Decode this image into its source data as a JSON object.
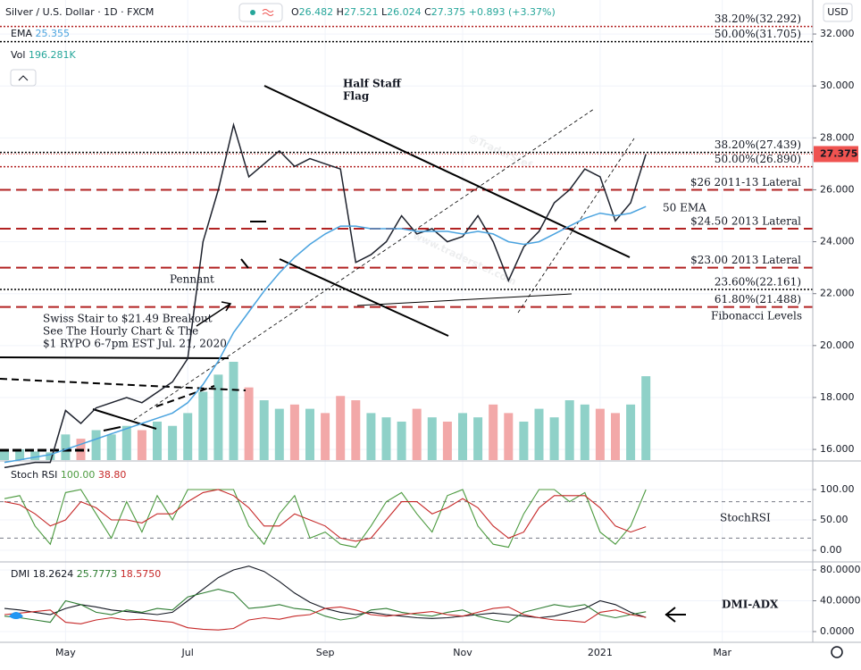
{
  "chart_data": [
    {
      "type": "line",
      "title": "Silver / U.S. Dollar · 1D · FXCM",
      "currency": "USD",
      "ohlc": [
        {
          "label": "O",
          "value": 26.482
        },
        {
          "label": "H",
          "value": 27.521
        },
        {
          "label": "L",
          "value": 26.024
        },
        {
          "label": "C",
          "value": 27.375
        }
      ],
      "change": {
        "value": 0.893,
        "label": "+0.893"
      },
      "change_pct": {
        "value": 3.37,
        "label": "(+3.37%)"
      },
      "last_price": 27.375,
      "indicators": [
        {
          "name": "EMA",
          "value": 25.355
        },
        {
          "name": "Vol",
          "value": 196.281,
          "label": "196.281K"
        }
      ],
      "series": [
        {
          "color": "#1e222d",
          "values": [
            15.3,
            15.4,
            15.5,
            15.5,
            17.5,
            17.0,
            17.6,
            17.8,
            18.0,
            17.8,
            18.2,
            18.6,
            19.5,
            24.0,
            26.0,
            28.5,
            26.5,
            27.0,
            27.5,
            26.9,
            27.2,
            27.0,
            26.8,
            23.2,
            23.5,
            24.0,
            25.0,
            24.3,
            24.5,
            24.0,
            24.2,
            25.0,
            24.0,
            22.5,
            23.8,
            24.4,
            25.5,
            26.0,
            26.8,
            26.5,
            24.8,
            25.5,
            27.375,
            null,
            null,
            null,
            null,
            null,
            null,
            null,
            null,
            null,
            null
          ]
        },
        {
          "color": "#4aa3df",
          "values": [
            15.5,
            15.6,
            15.7,
            15.8,
            16.0,
            16.2,
            16.4,
            16.6,
            16.8,
            17.0,
            17.2,
            17.4,
            17.8,
            18.5,
            19.4,
            20.5,
            21.3,
            22.1,
            22.8,
            23.4,
            23.9,
            24.3,
            24.6,
            24.6,
            24.5,
            24.5,
            24.5,
            24.4,
            24.4,
            24.4,
            24.3,
            24.4,
            24.3,
            24.0,
            23.9,
            24.0,
            24.3,
            24.6,
            24.9,
            25.1,
            25.0,
            25.1,
            25.355,
            null,
            null,
            null,
            null,
            null,
            null,
            null,
            null,
            null,
            null
          ]
        }
      ],
      "volume": {
        "up_color": "#8fd1c8",
        "down_color": "#f2a8a8",
        "values": [
          20,
          25,
          20,
          18,
          60,
          50,
          70,
          60,
          80,
          70,
          90,
          80,
          110,
          160,
          200,
          230,
          170,
          140,
          120,
          130,
          120,
          110,
          150,
          140,
          110,
          100,
          90,
          120,
          100,
          90,
          110,
          100,
          130,
          110,
          90,
          120,
          100,
          140,
          130,
          120,
          110,
          130,
          196.281,
          null,
          null,
          null,
          null,
          null,
          null,
          null,
          null,
          null,
          null
        ]
      },
      "levels": [
        {
          "value": 32.292,
          "label": "38.20%(32.292)",
          "color": "#b22222",
          "style": "dotted"
        },
        {
          "value": 31.705,
          "label": "50.00%(31.705)",
          "color": "#000000",
          "style": "dotted"
        },
        {
          "value": 27.439,
          "label": "38.20%(27.439)",
          "color": "#000000",
          "style": "dotted"
        },
        {
          "value": 26.89,
          "label": "50.00%(26.890)",
          "color": "#b22222",
          "style": "dotted"
        },
        {
          "value": 26,
          "label": "$26 2011-13 Lateral",
          "color": "#b22222",
          "style": "dashed"
        },
        {
          "value": 24.5,
          "label": "$24.50 2013 Lateral",
          "color": "#b22222",
          "style": "dashed"
        },
        {
          "value": 23,
          "label": "$23.00 2013 Lateral",
          "color": "#b22222",
          "style": "dashed"
        },
        {
          "value": 22.161,
          "label": "23.60%(22.161)",
          "color": "#000000",
          "style": "dotted"
        },
        {
          "value": 21.488,
          "label": "61.80%(21.488)",
          "color": "#b22222",
          "style": "dashed"
        }
      ],
      "annotations": [
        {
          "lines": [
            "Half Staff",
            "Flag"
          ]
        },
        {
          "lines": [
            "Pennant"
          ]
        },
        {
          "lines": [
            "Swiss Stair to $21.49 Breakout",
            "See The Hourly Chart & The",
            "$1 RYPO 6-7pm EST Jul. 21, 2020"
          ]
        },
        {
          "lines": [
            "50 EMA"
          ]
        },
        {
          "lines": [
            "Fibonacci Levels"
          ]
        }
      ],
      "watermark": [
        "@TraderStef",
        "www.traderstef.com"
      ],
      "ylim": [
        15.59,
        33.31
      ],
      "yticks": [
        {
          "value": 16,
          "label": "16.000"
        },
        {
          "value": 18,
          "label": "18.000"
        },
        {
          "value": 20,
          "label": "20.000"
        },
        {
          "value": 22,
          "label": "22.000"
        },
        {
          "value": 24,
          "label": "24.000"
        },
        {
          "value": 26,
          "label": "26.000"
        },
        {
          "value": 28,
          "label": "28.000"
        },
        {
          "value": 30,
          "label": "30.000"
        },
        {
          "value": 32,
          "label": "32.000"
        }
      ]
    },
    {
      "type": "line",
      "title": "Stoch RSI",
      "label": "StochRSI",
      "readings": [
        {
          "value": 100,
          "label": "100.00",
          "color": "#4c9a3f"
        },
        {
          "value": 38.8,
          "label": "38.80",
          "color": "#c62828"
        }
      ],
      "series": [
        {
          "color": "#4c9a3f",
          "values": [
            85,
            90,
            40,
            10,
            95,
            100,
            60,
            20,
            80,
            30,
            90,
            50,
            100,
            100,
            100,
            100,
            40,
            10,
            60,
            90,
            20,
            30,
            10,
            5,
            40,
            80,
            95,
            60,
            30,
            90,
            100,
            40,
            10,
            5,
            60,
            100,
            100,
            80,
            95,
            30,
            10,
            40,
            100,
            null,
            null,
            null,
            null,
            null,
            null,
            null,
            null,
            null,
            null
          ]
        },
        {
          "color": "#c62828",
          "values": [
            80,
            75,
            60,
            40,
            50,
            80,
            70,
            50,
            50,
            45,
            60,
            60,
            80,
            95,
            100,
            90,
            70,
            40,
            40,
            60,
            50,
            40,
            20,
            15,
            20,
            50,
            80,
            80,
            60,
            70,
            85,
            70,
            40,
            20,
            30,
            70,
            90,
            90,
            90,
            70,
            40,
            30,
            38.8,
            null,
            null,
            null,
            null,
            null,
            null,
            null,
            null,
            null,
            null
          ]
        }
      ],
      "bands": [
        80,
        20
      ],
      "ylim": [
        -17.6,
        145.6
      ],
      "yticks": [
        {
          "value": 0,
          "label": "0.00"
        },
        {
          "value": 50,
          "label": "50.00"
        },
        {
          "value": 100,
          "label": "100.00"
        }
      ]
    },
    {
      "type": "line",
      "title": "DMI",
      "label": "DMI-ADX",
      "readings": [
        {
          "value": 18.2624,
          "label": "18.2624",
          "color": "#131722"
        },
        {
          "value": 25.7773,
          "label": "25.7773",
          "color": "#2e7d32"
        },
        {
          "value": 18.575,
          "label": "18.5750",
          "color": "#c62828"
        }
      ],
      "series": [
        {
          "color": "#131722",
          "values": [
            30,
            28,
            25,
            22,
            30,
            35,
            32,
            28,
            26,
            24,
            22,
            25,
            40,
            55,
            70,
            80,
            85,
            78,
            65,
            50,
            38,
            30,
            25,
            22,
            25,
            22,
            20,
            18,
            17,
            18,
            20,
            22,
            24,
            22,
            20,
            18,
            20,
            25,
            30,
            40,
            35,
            25,
            18.2624,
            null,
            null,
            null,
            null,
            null,
            null,
            null,
            null,
            null,
            null
          ]
        },
        {
          "color": "#2e7d32",
          "values": [
            20,
            18,
            15,
            12,
            40,
            35,
            25,
            22,
            28,
            25,
            30,
            28,
            45,
            50,
            55,
            50,
            30,
            32,
            35,
            30,
            28,
            20,
            15,
            18,
            28,
            30,
            25,
            22,
            20,
            25,
            28,
            20,
            15,
            12,
            25,
            30,
            35,
            32,
            35,
            22,
            18,
            22,
            25.7773,
            null,
            null,
            null,
            null,
            null,
            null,
            null,
            null,
            null,
            null
          ]
        },
        {
          "color": "#c62828",
          "values": [
            22,
            24,
            26,
            28,
            12,
            10,
            15,
            18,
            15,
            16,
            14,
            12,
            5,
            3,
            2,
            4,
            15,
            18,
            16,
            20,
            22,
            30,
            32,
            28,
            22,
            20,
            22,
            24,
            26,
            22,
            20,
            25,
            30,
            32,
            22,
            18,
            15,
            14,
            12,
            25,
            28,
            22,
            18.575,
            null,
            null,
            null,
            null,
            null,
            null,
            null,
            null,
            null,
            null
          ]
        }
      ],
      "categories": [
        null,
        null,
        null,
        null,
        "May",
        null,
        null,
        null,
        null,
        null,
        null,
        null,
        "Jul",
        null,
        null,
        null,
        null,
        null,
        null,
        null,
        null,
        "Sep",
        null,
        null,
        null,
        null,
        null,
        null,
        null,
        null,
        "Nov",
        null,
        null,
        null,
        null,
        null,
        null,
        null,
        null,
        "2021",
        null,
        null,
        null,
        null,
        null,
        null,
        null,
        "Mar",
        null,
        null,
        null,
        null,
        null
      ],
      "ylim": [
        -12.8,
        89.3
      ],
      "yticks": [
        {
          "value": 0,
          "label": "0.0000"
        },
        {
          "value": 40,
          "label": "40.0000"
        },
        {
          "value": 80,
          "label": "80.0000"
        }
      ]
    }
  ]
}
